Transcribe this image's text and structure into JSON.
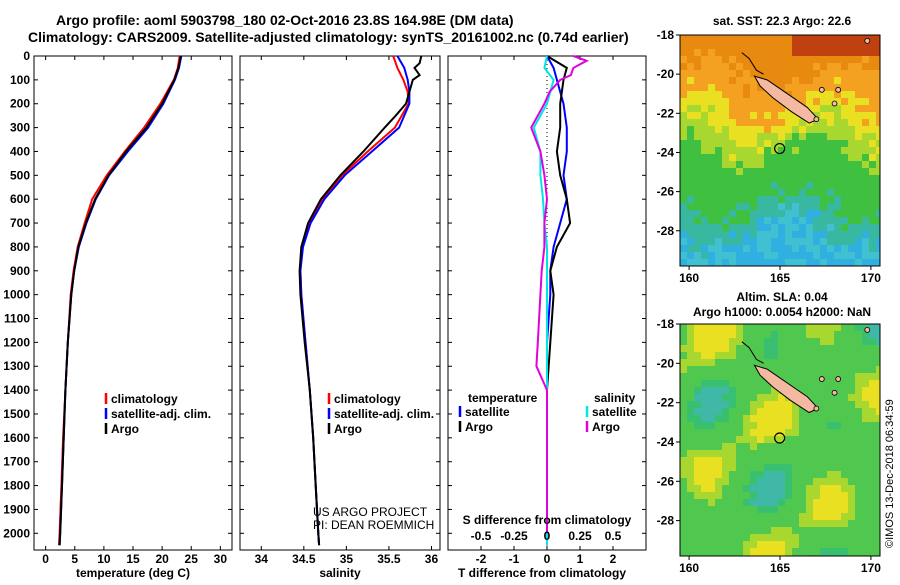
{
  "header": {
    "line1": "Argo profile: aoml 5903798_180 02-Oct-2016 23.8S 164.98E (DM data)",
    "line2": "Climatology: CARS2009. Satellite-adjusted climatology: synTS_20161002.nc (0.74d earlier)"
  },
  "colors": {
    "argo": "#000000",
    "climatology": "#ff0000",
    "satellite_adj": "#0000ff",
    "sat_salinity": "#00e5e5",
    "argo_salinity": "#e000e0"
  },
  "chart_data": [
    {
      "type": "line",
      "panel": "temperature",
      "xlabel": "temperature (deg C)",
      "xlim": [
        -2,
        32
      ],
      "ylim": [
        0,
        2070
      ],
      "x_ticks": [
        "0",
        "5",
        "10",
        "15",
        "20",
        "25",
        "30"
      ],
      "y_ticks": [
        "0",
        "100",
        "200",
        "300",
        "400",
        "500",
        "600",
        "700",
        "800",
        "900",
        "1000",
        "1100",
        "1200",
        "1300",
        "1400",
        "1500",
        "1600",
        "1700",
        "1800",
        "1900",
        "2000"
      ],
      "legend": [
        "climatology",
        "satellite-adj. clim.",
        "Argo"
      ],
      "series": [
        {
          "name": "climatology",
          "depth": [
            0,
            50,
            100,
            200,
            300,
            400,
            500,
            600,
            700,
            800,
            900,
            1000,
            1200,
            1400,
            1600,
            1800,
            2000,
            2050
          ],
          "values": [
            23.0,
            22.7,
            22.0,
            19.7,
            16.9,
            13.6,
            10.5,
            8.0,
            6.7,
            5.5,
            4.8,
            4.3,
            3.8,
            3.4,
            3.0,
            2.7,
            2.4,
            2.3
          ]
        },
        {
          "name": "satellite-adj. clim.",
          "depth": [
            0,
            50,
            100,
            200,
            300,
            400,
            500,
            600,
            700,
            800,
            900,
            1000,
            1200,
            1400,
            1600,
            1800,
            2000,
            2050
          ],
          "values": [
            23.3,
            22.9,
            22.2,
            20.2,
            17.6,
            14.1,
            10.9,
            8.6,
            7.0,
            5.7,
            4.9,
            4.4,
            3.8,
            3.4,
            3.1,
            2.8,
            2.5,
            2.4
          ]
        },
        {
          "name": "Argo",
          "depth": [
            0,
            50,
            100,
            200,
            300,
            400,
            500,
            600,
            700,
            800,
            900,
            1000,
            1200,
            1400,
            1600,
            1800,
            2000,
            2050
          ],
          "values": [
            23.2,
            22.8,
            22.1,
            20.0,
            17.3,
            13.8,
            10.8,
            8.5,
            6.9,
            5.6,
            4.9,
            4.4,
            3.8,
            3.4,
            3.1,
            2.8,
            2.5,
            2.4
          ]
        }
      ]
    },
    {
      "type": "line",
      "panel": "salinity",
      "xlabel": "salinity",
      "xlim": [
        33.75,
        36.1
      ],
      "ylim": [
        0,
        2070
      ],
      "x_ticks": [
        "34",
        "34.5",
        "35",
        "35.5",
        "36"
      ],
      "legend": [
        "climatology",
        "satellite-adj. clim.",
        "Argo"
      ],
      "credit": [
        "US ARGO PROJECT",
        "PI: DEAN ROEMMICH"
      ],
      "series": [
        {
          "name": "climatology",
          "depth": [
            0,
            50,
            100,
            150,
            200,
            300,
            400,
            500,
            600,
            700,
            800,
            900,
            1000,
            1200,
            1400,
            1600,
            1800,
            2000,
            2050
          ],
          "values": [
            35.55,
            35.6,
            35.67,
            35.72,
            35.73,
            35.57,
            35.25,
            34.95,
            34.72,
            34.57,
            34.48,
            34.46,
            34.47,
            34.52,
            34.57,
            34.61,
            34.64,
            34.67,
            34.68
          ]
        },
        {
          "name": "satellite-adj. clim.",
          "depth": [
            0,
            50,
            100,
            150,
            200,
            300,
            400,
            500,
            600,
            700,
            800,
            900,
            1000,
            1200,
            1400,
            1600,
            1800,
            2000,
            2050
          ],
          "values": [
            35.6,
            35.68,
            35.72,
            35.74,
            35.74,
            35.62,
            35.3,
            34.98,
            34.74,
            34.58,
            34.49,
            34.46,
            34.47,
            34.52,
            34.57,
            34.61,
            34.64,
            34.67,
            34.68
          ]
        },
        {
          "name": "Argo",
          "depth": [
            0,
            30,
            50,
            80,
            100,
            150,
            200,
            250,
            300,
            400,
            500,
            600,
            700,
            800,
            900,
            1000,
            1200,
            1400,
            1600,
            1800,
            2000,
            2050
          ],
          "values": [
            35.88,
            35.86,
            35.8,
            35.86,
            35.78,
            35.74,
            35.7,
            35.58,
            35.45,
            35.2,
            34.93,
            34.7,
            34.55,
            34.47,
            34.45,
            34.46,
            34.51,
            34.57,
            34.61,
            34.64,
            34.67,
            34.68
          ]
        }
      ]
    },
    {
      "type": "line",
      "panel": "differences",
      "xlabel": "T difference from climatology",
      "xlabel_top": "S difference from climatology",
      "xlim": [
        -3,
        3
      ],
      "ylim": [
        0,
        2070
      ],
      "x_ticks": [
        "-2",
        "-1",
        "0",
        "1",
        "2"
      ],
      "s_ticks": [
        "-0.5",
        "-0.25",
        "0",
        "0.25",
        "0.5"
      ],
      "legend_left_title": "temperature",
      "legend_left": [
        "satellite",
        "Argo"
      ],
      "legend_right_title": "salinity",
      "legend_right": [
        "satellite",
        "Argo"
      ],
      "series": [
        {
          "name": "satellite",
          "quantity": "temperature",
          "depth": [
            0,
            50,
            100,
            200,
            300,
            400,
            500,
            600,
            700,
            800,
            900,
            1000,
            1200,
            1400,
            1600,
            1800,
            2000,
            2050
          ],
          "values": [
            0.0,
            0.2,
            0.3,
            0.5,
            0.6,
            0.6,
            0.5,
            0.6,
            0.4,
            0.2,
            0.1,
            0.1,
            0.0,
            0.0,
            0.0,
            0.0,
            0.0,
            0.0
          ]
        },
        {
          "name": "Argo",
          "quantity": "temperature",
          "depth": [
            0,
            50,
            100,
            200,
            300,
            400,
            500,
            600,
            700,
            800,
            900,
            1000,
            1200,
            1400,
            1600,
            1800,
            2000,
            2050
          ],
          "values": [
            0.0,
            0.6,
            0.5,
            0.4,
            0.4,
            0.3,
            0.4,
            0.6,
            0.7,
            0.3,
            0.1,
            0.2,
            0.1,
            0.0,
            0.0,
            0.0,
            0.0,
            0.0
          ]
        },
        {
          "name": "satellite",
          "quantity": "salinity",
          "depth": [
            0,
            50,
            100,
            200,
            300,
            400,
            500,
            600,
            700,
            800,
            900,
            1000,
            1200,
            1400,
            1600,
            1800,
            2000,
            2050
          ],
          "values": [
            0.0,
            -0.02,
            0.05,
            0.0,
            -0.1,
            -0.05,
            -0.05,
            -0.03,
            -0.02,
            0.0,
            0.0,
            0.0,
            0.0,
            0.0,
            0.0,
            0.0,
            0.0,
            0.0
          ]
        },
        {
          "name": "Argo",
          "quantity": "salinity",
          "depth": [
            0,
            20,
            50,
            80,
            100,
            150,
            200,
            300,
            400,
            500,
            600,
            700,
            800,
            900,
            1000,
            1100,
            1200,
            1300,
            1400,
            1600,
            1800,
            2000
          ],
          "values": [
            0.2,
            0.3,
            0.2,
            0.18,
            0.1,
            0.02,
            -0.02,
            -0.12,
            -0.05,
            -0.02,
            0.0,
            -0.02,
            -0.02,
            -0.04,
            -0.05,
            -0.06,
            -0.07,
            -0.08,
            0.0,
            0.0,
            0.0,
            0.0
          ]
        }
      ]
    },
    {
      "type": "heatmap",
      "panel": "sst_map",
      "title": "sat. SST: 22.3 Argo: 22.6",
      "xlim": [
        159.5,
        170.5
      ],
      "ylim": [
        -29.8,
        -18
      ],
      "x_ticks": [
        "160",
        "165",
        "170"
      ],
      "y_ticks": [
        "-18",
        "-20",
        "-22",
        "-24",
        "-26",
        "-28"
      ],
      "marker": {
        "lon": 164.98,
        "lat": -23.8
      }
    },
    {
      "type": "heatmap",
      "panel": "sla_map",
      "title_line1": "Altim. SLA: 0.04",
      "title_line2": "Argo h1000: 0.0054 h2000: NaN",
      "xlim": [
        159.5,
        170.5
      ],
      "ylim": [
        -29.8,
        -18
      ],
      "x_ticks": [
        "160",
        "165",
        "170"
      ],
      "y_ticks": [
        "-18",
        "-20",
        "-22",
        "-24",
        "-26",
        "-28"
      ],
      "marker": {
        "lon": 164.98,
        "lat": -23.8
      }
    }
  ],
  "footer": {
    "stamp": "©IMOS 13-Dec-2018 06:34:59"
  }
}
